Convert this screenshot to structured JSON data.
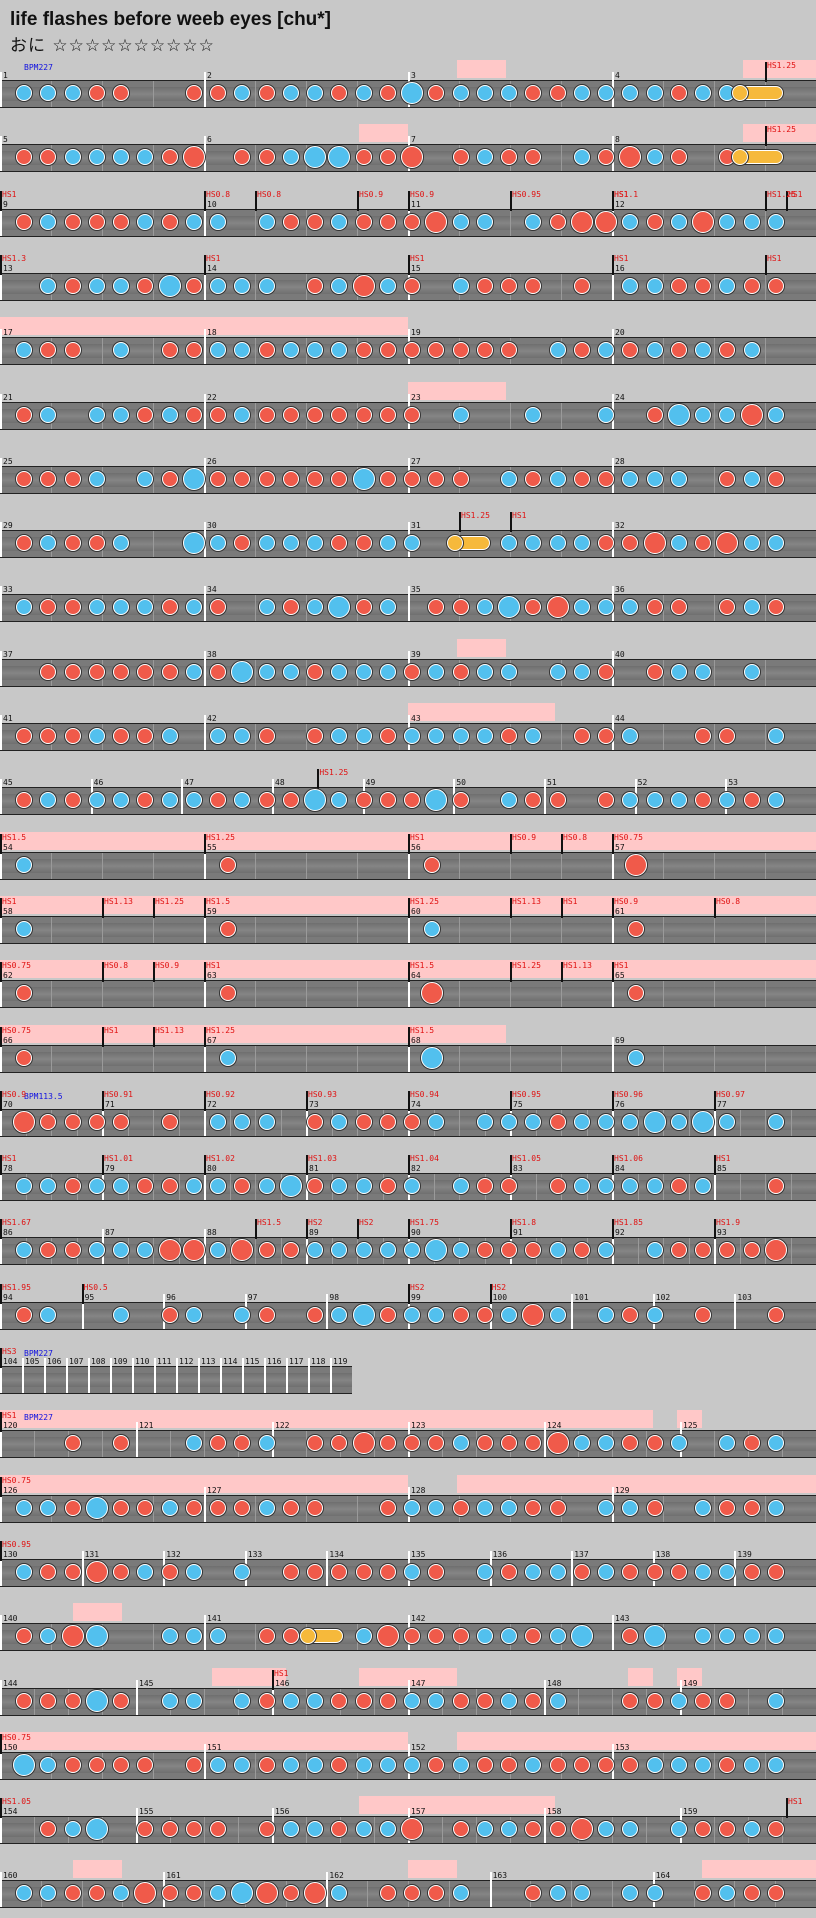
{
  "title": "life flashes before weeb eyes [chu*]",
  "difficulty_label": "おに",
  "stars": "☆☆☆☆☆☆☆☆☆☆",
  "colors": {
    "don": "#f05a4a",
    "ka": "#52c0ee",
    "roll": "#f6b93b",
    "lane": "#7a7a7a",
    "sv_text": "#e01010",
    "bpm_text": "#1010e0",
    "highlight": "#ffc8c8"
  },
  "rows": [
    {
      "measures": [
        1,
        2,
        3,
        4
      ],
      "bpm": "BPM227",
      "sv": [
        {
          "m": 3,
          "t": "HS1.25",
          "f": 0.75
        }
      ],
      "pink": [
        [
          0.56,
          0.62
        ],
        [
          0.91,
          1.0
        ]
      ],
      "seed": 1,
      "roll": [
        0.9,
        0.96
      ]
    },
    {
      "measures": [
        5,
        6,
        7,
        8
      ],
      "sv": [
        {
          "m": 3,
          "t": "HS1.25",
          "f": 0.75
        }
      ],
      "pink": [
        [
          0.44,
          0.5
        ],
        [
          0.91,
          1.0
        ]
      ],
      "seed": 2,
      "roll": [
        0.9,
        0.96
      ]
    },
    {
      "measures": [
        9,
        10,
        11,
        12
      ],
      "sv": [
        {
          "m": 0,
          "t": "HS1",
          "f": 0
        },
        {
          "m": 1,
          "t": "HS0.8",
          "f": 0
        },
        {
          "m": 1,
          "t": "HS0.8",
          "f": 0.25
        },
        {
          "m": 1,
          "t": "HS0.9",
          "f": 0.75
        },
        {
          "m": 2,
          "t": "HS0.9",
          "f": 0
        },
        {
          "m": 2,
          "t": "HS0.95",
          "f": 0.5
        },
        {
          "m": 3,
          "t": "HS1",
          "f": 0
        },
        {
          "m": 3,
          "t": "HS1",
          "f": 1
        },
        {
          "m": 4,
          "t": "HS1.1",
          "f": 0
        },
        {
          "m": 4,
          "t": "HS1.25",
          "f": 0.75
        }
      ],
      "seed": 3
    },
    {
      "measures": [
        13,
        14,
        15,
        16
      ],
      "sv": [
        {
          "m": 0,
          "t": "HS1.3",
          "f": 0
        },
        {
          "m": 1,
          "t": "HS1",
          "f": 0
        },
        {
          "m": 2,
          "t": "HS1",
          "f": 0
        },
        {
          "m": 3,
          "t": "HS1",
          "f": 0
        },
        {
          "m": 3,
          "t": "HS1",
          "f": 0.75
        }
      ],
      "seed": 4
    },
    {
      "measures": [
        17,
        18,
        19,
        20
      ],
      "pink": [
        [
          0,
          0.5
        ]
      ],
      "seed": 5
    },
    {
      "measures": [
        21,
        22,
        23,
        24
      ],
      "pink": [
        [
          0.5,
          0.62
        ]
      ],
      "seed": 6
    },
    {
      "measures": [
        25,
        26,
        27,
        28
      ],
      "seed": 7
    },
    {
      "measures": [
        29,
        30,
        31,
        32
      ],
      "sv": [
        {
          "m": 2,
          "t": "HS1.25",
          "f": 0.25
        },
        {
          "m": 2,
          "t": "HS1",
          "f": 0.5
        }
      ],
      "seed": 8,
      "roll": [
        0.55,
        0.6
      ]
    },
    {
      "measures": [
        33,
        34,
        35,
        36
      ],
      "seed": 9
    },
    {
      "measures": [
        37,
        38,
        39,
        40
      ],
      "pink": [
        [
          0.56,
          0.62
        ]
      ],
      "seed": 10
    },
    {
      "measures": [
        41,
        42,
        43,
        44
      ],
      "pink": [
        [
          0.5,
          0.68
        ]
      ],
      "seed": 11
    },
    {
      "measures": [
        45,
        46,
        47,
        48,
        49,
        50,
        51,
        52,
        53
      ],
      "sv": [
        {
          "m": 3,
          "t": "HS1.25",
          "f": 0.5
        }
      ],
      "seed": 12
    },
    {
      "measures": [
        54,
        55,
        56,
        57
      ],
      "sv": [
        {
          "m": 0,
          "t": "HS1.5",
          "f": 0
        },
        {
          "m": 1,
          "t": "HS1.25",
          "f": 0
        },
        {
          "m": 2,
          "t": "HS1",
          "f": 0
        },
        {
          "m": 2,
          "t": "HS0.9",
          "f": 0.5
        },
        {
          "m": 2,
          "t": "HS0.8",
          "f": 0.75
        },
        {
          "m": 3,
          "t": "HS0.75",
          "f": 0
        }
      ],
      "pink": [
        [
          0,
          1.0
        ]
      ],
      "seed": 13,
      "sparse": true
    },
    {
      "measures": [
        58,
        59,
        60,
        61
      ],
      "sv": [
        {
          "m": 0,
          "t": "HS1",
          "f": 0
        },
        {
          "m": 0,
          "t": "HS1.13",
          "f": 0.5
        },
        {
          "m": 0,
          "t": "HS1.25",
          "f": 0.75
        },
        {
          "m": 1,
          "t": "HS1.5",
          "f": 0
        },
        {
          "m": 2,
          "t": "HS1.25",
          "f": 0
        },
        {
          "m": 2,
          "t": "HS1.13",
          "f": 0.5
        },
        {
          "m": 2,
          "t": "HS1",
          "f": 0.75
        },
        {
          "m": 3,
          "t": "HS0.9",
          "f": 0
        },
        {
          "m": 3,
          "t": "HS0.8",
          "f": 0.5
        }
      ],
      "pink": [
        [
          0,
          1.0
        ]
      ],
      "seed": 14,
      "sparse": true
    },
    {
      "measures": [
        62,
        63,
        64,
        65
      ],
      "sv": [
        {
          "m": 0,
          "t": "HS0.75",
          "f": 0
        },
        {
          "m": 0,
          "t": "HS0.8",
          "f": 0.5
        },
        {
          "m": 0,
          "t": "HS0.9",
          "f": 0.75
        },
        {
          "m": 1,
          "t": "HS1",
          "f": 0
        },
        {
          "m": 2,
          "t": "HS1.5",
          "f": 0
        },
        {
          "m": 2,
          "t": "HS1.25",
          "f": 0.5
        },
        {
          "m": 2,
          "t": "HS1.13",
          "f": 0.75
        },
        {
          "m": 3,
          "t": "HS1",
          "f": 0
        }
      ],
      "pink": [
        [
          0,
          1.0
        ]
      ],
      "seed": 15,
      "sparse": true
    },
    {
      "measures": [
        66,
        67,
        68,
        69
      ],
      "sv": [
        {
          "m": 0,
          "t": "HS0.75",
          "f": 0
        },
        {
          "m": 0,
          "t": "HS1",
          "f": 0.5
        },
        {
          "m": 0,
          "t": "HS1.13",
          "f": 0.75
        },
        {
          "m": 1,
          "t": "HS1.25",
          "f": 0
        },
        {
          "m": 2,
          "t": "HS1.5",
          "f": 0
        }
      ],
      "pink": [
        [
          0,
          0.62
        ]
      ],
      "seed": 16,
      "sparse": true
    },
    {
      "measures": [
        70,
        71,
        72,
        73,
        74,
        75,
        76,
        77
      ],
      "bpm": "BPM113.5",
      "sv": [
        {
          "m": 0,
          "t": "HS0.9",
          "f": 0
        },
        {
          "m": 1,
          "t": "HS0.91",
          "f": 0
        },
        {
          "m": 2,
          "t": "HS0.92",
          "f": 0
        },
        {
          "m": 3,
          "t": "HS0.93",
          "f": 0
        },
        {
          "m": 4,
          "t": "HS0.94",
          "f": 0
        },
        {
          "m": 5,
          "t": "HS0.95",
          "f": 0
        },
        {
          "m": 6,
          "t": "HS0.96",
          "f": 0
        },
        {
          "m": 7,
          "t": "HS0.97",
          "f": 0
        }
      ],
      "seed": 17
    },
    {
      "measures": [
        78,
        79,
        80,
        81,
        82,
        83,
        84,
        85
      ],
      "sv": [
        {
          "m": 0,
          "t": "HS1",
          "f": 0
        },
        {
          "m": 1,
          "t": "HS1.01",
          "f": 0
        },
        {
          "m": 2,
          "t": "HS1.02",
          "f": 0
        },
        {
          "m": 3,
          "t": "HS1.03",
          "f": 0
        },
        {
          "m": 4,
          "t": "HS1.04",
          "f": 0
        },
        {
          "m": 5,
          "t": "HS1.05",
          "f": 0
        },
        {
          "m": 6,
          "t": "HS1.06",
          "f": 0
        },
        {
          "m": 7,
          "t": "HS1",
          "f": 0
        }
      ],
      "seed": 18
    },
    {
      "measures": [
        86,
        87,
        88,
        89,
        90,
        91,
        92,
        93
      ],
      "sv": [
        {
          "m": 0,
          "t": "HS1.67",
          "f": 0
        },
        {
          "m": 2,
          "t": "HS1.5",
          "f": 0.5
        },
        {
          "m": 3,
          "t": "HS2",
          "f": 0
        },
        {
          "m": 3,
          "t": "HS2",
          "f": 0.5
        },
        {
          "m": 4,
          "t": "HS1.75",
          "f": 0
        },
        {
          "m": 5,
          "t": "HS1.8",
          "f": 0
        },
        {
          "m": 6,
          "t": "HS1.85",
          "f": 0
        },
        {
          "m": 7,
          "t": "HS1.9",
          "f": 0
        }
      ],
      "seed": 19
    },
    {
      "measures": [
        94,
        95,
        96,
        97,
        98,
        99,
        100,
        101,
        102,
        103
      ],
      "sv": [
        {
          "m": 0,
          "t": "HS1.95",
          "f": 0
        },
        {
          "m": 1,
          "t": "HS0.5",
          "f": 0
        },
        {
          "m": 5,
          "t": "HS2",
          "f": 0
        },
        {
          "m": 6,
          "t": "HS2",
          "f": 0
        }
      ],
      "seed": 20
    },
    {
      "measures": [
        104,
        105,
        106,
        107,
        108,
        109,
        110,
        111,
        112,
        113,
        114,
        115,
        116,
        117,
        118,
        119
      ],
      "bpm": "BPM227",
      "sv": [
        {
          "m": 0,
          "t": "HS3",
          "f": 0
        }
      ],
      "short": true,
      "seed": 21
    },
    {
      "measures": [
        120,
        121,
        122,
        123,
        124,
        125
      ],
      "bpm": "BPM227",
      "sv": [
        {
          "m": 0,
          "t": "HS1",
          "f": 0
        }
      ],
      "pink": [
        [
          0,
          0.8
        ],
        [
          0.83,
          0.86
        ]
      ],
      "seed": 22
    },
    {
      "measures": [
        126,
        127,
        128,
        129
      ],
      "sv": [
        {
          "m": 0,
          "t": "HS0.75",
          "f": 0
        }
      ],
      "pink": [
        [
          0,
          0.5
        ],
        [
          0.56,
          1.0
        ]
      ],
      "seed": 23
    },
    {
      "measures": [
        130,
        131,
        132,
        133,
        134,
        135,
        136,
        137,
        138,
        139
      ],
      "sv": [
        {
          "m": 0,
          "t": "HS0.95",
          "f": 0
        }
      ],
      "seed": 24
    },
    {
      "measures": [
        140,
        141,
        142,
        143
      ],
      "pink": [
        [
          0.09,
          0.15
        ]
      ],
      "seed": 25,
      "roll": [
        0.37,
        0.42
      ]
    },
    {
      "measures": [
        144,
        145,
        146,
        147,
        148,
        149
      ],
      "sv": [
        {
          "m": 2,
          "t": "HS1",
          "f": 0
        }
      ],
      "pink": [
        [
          0.26,
          0.35
        ],
        [
          0.44,
          0.56
        ],
        [
          0.77,
          0.8
        ],
        [
          0.83,
          0.86
        ]
      ],
      "seed": 26
    },
    {
      "measures": [
        150,
        151,
        152,
        153
      ],
      "sv": [
        {
          "m": 0,
          "t": "HS0.75",
          "f": 0
        }
      ],
      "pink": [
        [
          0,
          0.5
        ],
        [
          0.56,
          1.0
        ]
      ],
      "seed": 27
    },
    {
      "measures": [
        154,
        155,
        156,
        157,
        158,
        159
      ],
      "sv": [
        {
          "m": 0,
          "t": "HS1.05",
          "f": 0
        },
        {
          "m": 5,
          "t": "HS1",
          "f": 1
        }
      ],
      "pink": [
        [
          0.44,
          0.68
        ]
      ],
      "seed": 28
    },
    {
      "measures": [
        160,
        161,
        162,
        163,
        164
      ],
      "pink": [
        [
          0.09,
          0.15
        ],
        [
          0.5,
          0.56
        ],
        [
          0.86,
          1.0
        ]
      ],
      "seed": 29
    }
  ]
}
